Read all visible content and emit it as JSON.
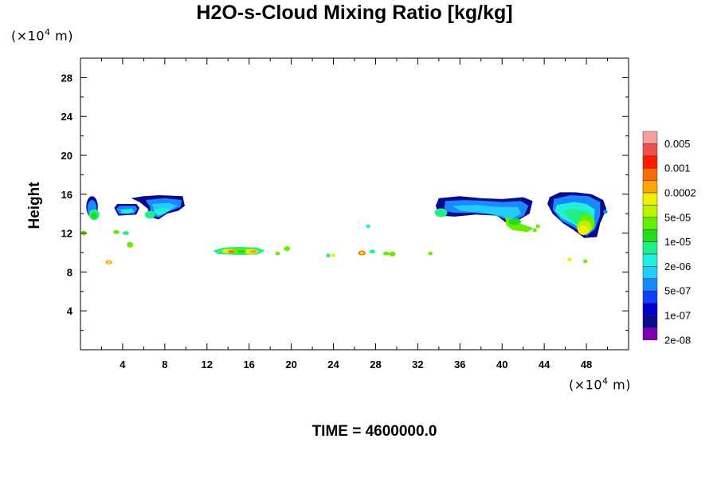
{
  "chart_data": {
    "type": "heatmap",
    "title": "H2O-s-Cloud Mixing Ratio [kg/kg]",
    "xlabel": "",
    "ylabel": "Height",
    "x_unit_prefix": "(×10",
    "x_unit_exp": "4",
    "x_unit_suffix": " m)",
    "y_unit_prefix": "(×10",
    "y_unit_exp": "4",
    "y_unit_suffix": " m)",
    "xlim": [
      0,
      52
    ],
    "ylim": [
      0,
      30
    ],
    "x_ticks": [
      4,
      8,
      12,
      16,
      20,
      24,
      28,
      32,
      36,
      40,
      44,
      48
    ],
    "y_ticks": [
      4,
      8,
      12,
      16,
      20,
      24,
      28
    ],
    "colorbar": {
      "labels": [
        "0.005",
        "0.001",
        "0.0002",
        "5e-05",
        "1e-05",
        "2e-06",
        "5e-07",
        "1e-07",
        "2e-08"
      ],
      "colors": [
        "#f8a0a0",
        "#f05050",
        "#ff1a00",
        "#ff6a00",
        "#ffa500",
        "#f0f000",
        "#bff000",
        "#66ee00",
        "#22dd22",
        "#22ee88",
        "#22eedd",
        "#22ccff",
        "#1a88ff",
        "#1040ff",
        "#0000d0",
        "#0a0a90",
        "#7a00b0"
      ]
    },
    "cloud_regions": [
      {
        "x": [
          0.3,
          1.8
        ],
        "y": [
          13.2,
          15.8
        ],
        "max_level": "1e-05"
      },
      {
        "x": [
          3.2,
          5.5
        ],
        "y": [
          13.8,
          15.0
        ],
        "max_level": "2e-06"
      },
      {
        "x": [
          6.0,
          9.9
        ],
        "y": [
          13.5,
          15.9
        ],
        "max_level": "1e-05"
      },
      {
        "x": [
          13.0,
          19.0
        ],
        "y": [
          9.8,
          10.5
        ],
        "max_level": "0.0002"
      },
      {
        "x": [
          26.5,
          28.0
        ],
        "y": [
          9.7,
          10.2
        ],
        "max_level": "0.0002"
      },
      {
        "x": [
          34.0,
          43.0
        ],
        "y": [
          12.3,
          15.8
        ],
        "max_level": "1e-05"
      },
      {
        "x": [
          44.5,
          50.0
        ],
        "y": [
          11.5,
          16.2
        ],
        "max_level": "5e-05"
      }
    ]
  },
  "footer": {
    "time_label": "TIME = 4600000.0"
  }
}
